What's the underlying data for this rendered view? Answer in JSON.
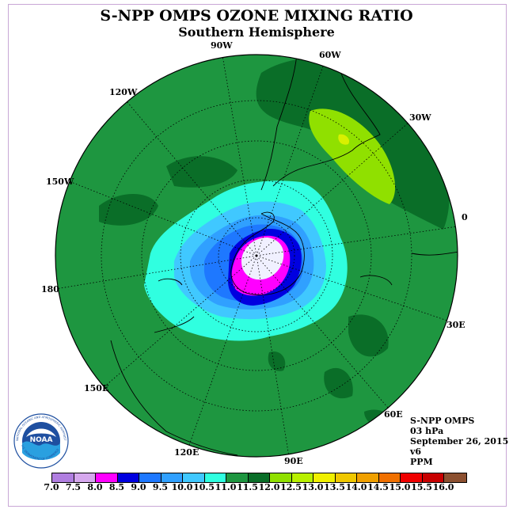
{
  "title": "S-NPP OMPS OZONE MIXING RATIO",
  "subtitle": "Southern Hemisphere",
  "longitude_labels": [
    "90W",
    "60W",
    "30W",
    "0",
    "30E",
    "60E",
    "90E",
    "120E",
    "150E",
    "180",
    "150W",
    "120W"
  ],
  "info": {
    "instrument": "S-NPP OMPS",
    "level": "03 hPa",
    "date": "September 26, 2015",
    "version": "v6",
    "units": "PPM"
  },
  "colorbar": {
    "ticks": [
      "7.0",
      "7.5",
      "8.0",
      "8.5",
      "9.0",
      "9.5",
      "10.0",
      "10.5",
      "11.0",
      "11.5",
      "12.0",
      "12.5",
      "13.0",
      "13.5",
      "14.0",
      "14.5",
      "15.0",
      "15.5",
      "16.0"
    ],
    "colors": [
      "#b07ee0",
      "#d6a8ee",
      "#ff00ff",
      "#0000e0",
      "#1e78ff",
      "#30a0ff",
      "#40c8ff",
      "#30ffe0",
      "#1e9640",
      "#0a6e28",
      "#90e000",
      "#b8f000",
      "#f0f000",
      "#f0c800",
      "#f0a000",
      "#f07000",
      "#f00000",
      "#c80000",
      "#8c5030"
    ]
  },
  "logo": {
    "text": "NOAA",
    "ring_text": "NATIONAL OCEANIC AND ATMOSPHERIC ADMINISTRATION",
    "ring_text_bottom": "U.S. DEPARTMENT OF COMMERCE"
  }
}
